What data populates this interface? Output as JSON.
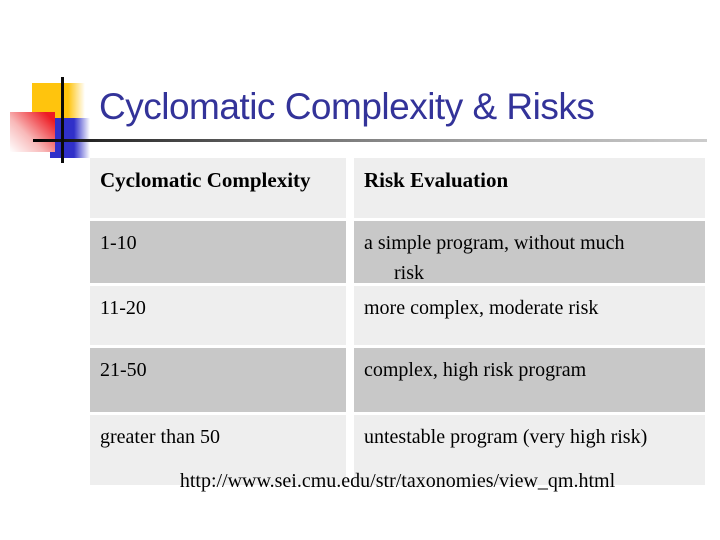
{
  "slide": {
    "title": "Cyclomatic Complexity & Risks",
    "footer_url": "http://www.sei.cmu.edu/str/taxonomies/view_qm.html"
  },
  "colors": {
    "title": "#333399",
    "row_dark": "#c8c8c8",
    "row_light": "#eeeeee",
    "logo_yellow": "#ffc40d",
    "logo_red": "#ed1c24",
    "logo_blue": "#3030c9"
  },
  "table": {
    "headers": [
      "Cyclomatic Complexity",
      "Risk Evaluation"
    ],
    "rows": [
      {
        "complexity": "1-10",
        "risk_lines": [
          "a simple program, without much",
          "risk"
        ]
      },
      {
        "complexity": "11-20",
        "risk_lines": [
          "more complex, moderate risk"
        ]
      },
      {
        "complexity": "21-50",
        "risk_lines": [
          "complex, high risk program"
        ]
      },
      {
        "complexity": "greater than 50",
        "risk_lines": [
          "untestable program (very high risk)"
        ]
      }
    ]
  }
}
